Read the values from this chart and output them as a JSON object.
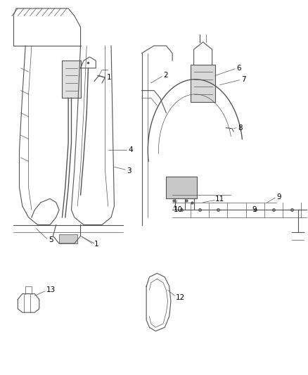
{
  "bg_color": "#ffffff",
  "line_color": "#555555",
  "label_color": "#000000",
  "label_fontsize": 7.5,
  "fig_width": 4.38,
  "fig_height": 5.33
}
